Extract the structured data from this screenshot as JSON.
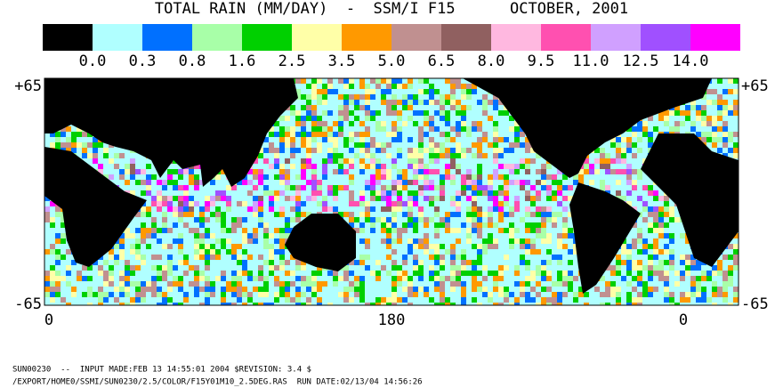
{
  "title": "TOTAL RAIN (MM/DAY)  -  SSM/I F15      OCTOBER, 2001",
  "legend": {
    "colors": [
      "#000000",
      "#b0ffff",
      "#0070ff",
      "#a8ffa8",
      "#00d000",
      "#ffffa8",
      "#ff9900",
      "#c09090",
      "#906060",
      "#ffb8e0",
      "#ff50b0",
      "#d0a0ff",
      "#a050ff",
      "#ff00ff"
    ],
    "labels": [
      "0.0",
      "0.3",
      "0.8",
      "1.6",
      "2.5",
      "3.5",
      "5.0",
      "6.5",
      "8.0",
      "9.5",
      "11.0",
      "12.5",
      "14.0"
    ]
  },
  "axes": {
    "left_labels": [
      "+65",
      "-65"
    ],
    "right_labels": [
      "+65",
      "-65"
    ],
    "x_labels": [
      "0",
      "180",
      "0"
    ]
  },
  "footer": [
    "SUN00230  --  INPUT MADE:FEB 13 14:55:01 2004 $REVISION: 3.4 $",
    "/EXPORT/HOME0/SSMI/SUN0230/2.5/COLOR/F15Y01M10_2.5DEG.RAS  RUN DATE:02/13/04 14:56:26"
  ]
}
